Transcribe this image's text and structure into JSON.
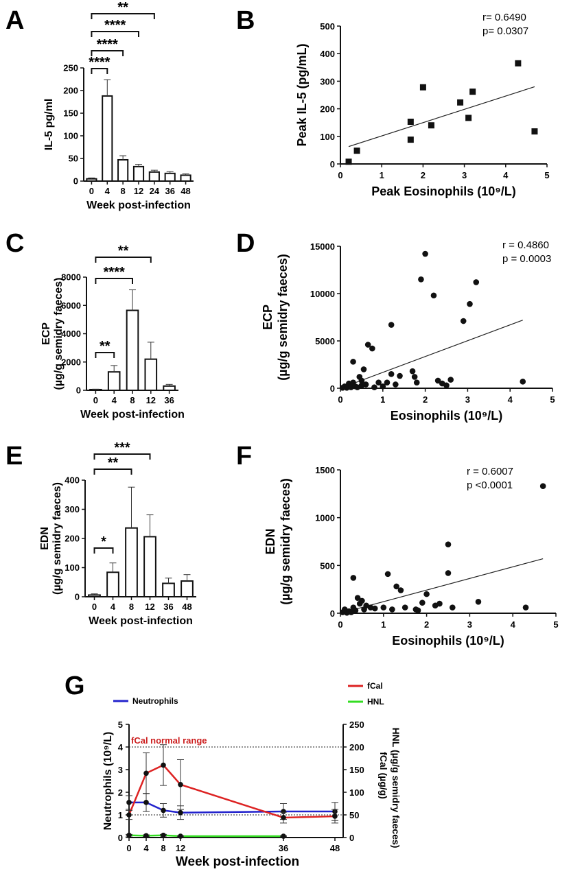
{
  "panels": {
    "A": "A",
    "B": "B",
    "C": "C",
    "D": "D",
    "E": "E",
    "F": "F",
    "G": "G"
  },
  "chart_data": [
    {
      "id": "A",
      "type": "bar",
      "ylabel": "IL-5 pg/ml",
      "xlabel": "Week post-infection",
      "categories": [
        "0",
        "4",
        "8",
        "12",
        "24",
        "36",
        "48"
      ],
      "values": [
        5,
        188,
        47,
        32,
        20,
        17,
        13
      ],
      "errors": [
        2,
        36,
        9,
        5,
        4,
        4,
        3
      ],
      "ylim": [
        0,
        250
      ],
      "yticks": [
        0,
        50,
        100,
        150,
        200,
        250
      ],
      "brackets": [
        {
          "from": "0",
          "to": "4",
          "label": "****"
        },
        {
          "from": "0",
          "to": "8",
          "label": "****"
        },
        {
          "from": "0",
          "to": "12",
          "label": "****"
        },
        {
          "from": "0",
          "to": "24",
          "label": "**"
        }
      ]
    },
    {
      "id": "B",
      "type": "scatter",
      "marker": "square",
      "xlabel": "Peak Eosinophils (10⁹/L)",
      "ylabel": "Peak IL-5 (pg/mL)",
      "xlim": [
        0,
        5
      ],
      "ylim": [
        0,
        500
      ],
      "xticks": [
        0,
        1,
        2,
        3,
        4,
        5
      ],
      "yticks": [
        0,
        100,
        200,
        300,
        400,
        500
      ],
      "stats": [
        "r= 0.6490",
        "p= 0.0307"
      ],
      "fit": [
        [
          0.2,
          63
        ],
        [
          4.7,
          280
        ]
      ],
      "points": [
        [
          0.2,
          8
        ],
        [
          0.4,
          48
        ],
        [
          1.7,
          88
        ],
        [
          1.7,
          153
        ],
        [
          2.0,
          278
        ],
        [
          2.2,
          140
        ],
        [
          2.9,
          223
        ],
        [
          3.1,
          167
        ],
        [
          3.2,
          262
        ],
        [
          4.3,
          365
        ],
        [
          4.7,
          118
        ]
      ]
    },
    {
      "id": "C",
      "type": "bar",
      "ylabel": "ECP",
      "ylabel2": "(µg/g semidry faeces)",
      "xlabel": "Week post-infection",
      "categories": [
        "0",
        "4",
        "8",
        "12",
        "36"
      ],
      "values": [
        50,
        1300,
        5650,
        2200,
        300
      ],
      "errors": [
        30,
        450,
        1450,
        1200,
        120
      ],
      "ylim": [
        0,
        8000
      ],
      "yticks": [
        0,
        2000,
        4000,
        6000,
        8000
      ],
      "brackets": [
        {
          "from": "0",
          "to": "4",
          "label": "**"
        },
        {
          "from": "0",
          "to": "8",
          "label": "****"
        },
        {
          "from": "0",
          "to": "12",
          "label": "**"
        }
      ]
    },
    {
      "id": "D",
      "type": "scatter",
      "marker": "circle",
      "xlabel": "Eosinophils (10⁹/L)",
      "ylabel": "ECP",
      "ylabel2": "(µg/g semidry faeces)",
      "xlim": [
        0,
        5
      ],
      "ylim": [
        0,
        15000
      ],
      "xticks": [
        0,
        1,
        2,
        3,
        4,
        5
      ],
      "yticks": [
        0,
        5000,
        10000,
        15000
      ],
      "stats": [
        "r = 0.4860",
        "p = 0.0003"
      ],
      "fit": [
        [
          0.0,
          0
        ],
        [
          4.3,
          7200
        ]
      ],
      "points": [
        [
          0.05,
          50
        ],
        [
          0.1,
          200
        ],
        [
          0.15,
          50
        ],
        [
          0.2,
          500
        ],
        [
          0.25,
          100
        ],
        [
          0.3,
          600
        ],
        [
          0.3,
          2800
        ],
        [
          0.35,
          200
        ],
        [
          0.4,
          100
        ],
        [
          0.45,
          1200
        ],
        [
          0.5,
          300
        ],
        [
          0.5,
          800
        ],
        [
          0.55,
          2000
        ],
        [
          0.6,
          400
        ],
        [
          0.65,
          4600
        ],
        [
          0.75,
          4200
        ],
        [
          0.8,
          100
        ],
        [
          0.9,
          600
        ],
        [
          1.0,
          200
        ],
        [
          1.1,
          600
        ],
        [
          1.2,
          1500
        ],
        [
          1.2,
          6700
        ],
        [
          1.3,
          400
        ],
        [
          1.4,
          1300
        ],
        [
          1.7,
          1800
        ],
        [
          1.75,
          1200
        ],
        [
          1.8,
          600
        ],
        [
          1.9,
          11500
        ],
        [
          2.0,
          14200
        ],
        [
          2.2,
          9800
        ],
        [
          2.3,
          800
        ],
        [
          2.4,
          500
        ],
        [
          2.5,
          300
        ],
        [
          2.6,
          900
        ],
        [
          2.9,
          7100
        ],
        [
          3.05,
          8900
        ],
        [
          3.2,
          11200
        ],
        [
          4.3,
          700
        ]
      ]
    },
    {
      "id": "E",
      "type": "bar",
      "ylabel": "EDN",
      "ylabel2": "(µg/g semidry faeces)",
      "xlabel": "Week post-infection",
      "categories": [
        "0",
        "4",
        "8",
        "12",
        "36",
        "48"
      ],
      "values": [
        6,
        84,
        236,
        206,
        46,
        54
      ],
      "errors": [
        4,
        32,
        140,
        75,
        18,
        22
      ],
      "ylim": [
        0,
        400
      ],
      "yticks": [
        0,
        100,
        200,
        300,
        400
      ],
      "brackets": [
        {
          "from": "0",
          "to": "4",
          "label": "*"
        },
        {
          "from": "0",
          "to": "8",
          "label": "**"
        },
        {
          "from": "0",
          "to": "12",
          "label": "***"
        }
      ]
    },
    {
      "id": "F",
      "type": "scatter",
      "marker": "circle",
      "xlabel": "Eosinophils (10⁹/L)",
      "ylabel": "EDN",
      "ylabel2": "(µg/g semidry faeces)",
      "xlim": [
        0,
        5
      ],
      "ylim": [
        0,
        1500
      ],
      "xticks": [
        0,
        1,
        2,
        3,
        4,
        5
      ],
      "yticks": [
        0,
        500,
        1000,
        1500
      ],
      "stats": [
        "r = 0.6007",
        "p  <0.0001"
      ],
      "fit": [
        [
          0.0,
          0
        ],
        [
          4.7,
          570
        ]
      ],
      "points": [
        [
          0.05,
          10
        ],
        [
          0.1,
          40
        ],
        [
          0.15,
          5
        ],
        [
          0.2,
          20
        ],
        [
          0.25,
          10
        ],
        [
          0.3,
          370
        ],
        [
          0.3,
          60
        ],
        [
          0.35,
          30
        ],
        [
          0.4,
          160
        ],
        [
          0.45,
          100
        ],
        [
          0.5,
          130
        ],
        [
          0.55,
          40
        ],
        [
          0.6,
          80
        ],
        [
          0.7,
          60
        ],
        [
          0.8,
          50
        ],
        [
          1.0,
          60
        ],
        [
          1.1,
          410
        ],
        [
          1.2,
          40
        ],
        [
          1.3,
          280
        ],
        [
          1.4,
          240
        ],
        [
          1.5,
          60
        ],
        [
          1.75,
          40
        ],
        [
          1.8,
          30
        ],
        [
          1.9,
          110
        ],
        [
          2.0,
          200
        ],
        [
          2.2,
          80
        ],
        [
          2.3,
          100
        ],
        [
          2.5,
          720
        ],
        [
          2.5,
          420
        ],
        [
          2.6,
          60
        ],
        [
          3.2,
          120
        ],
        [
          4.3,
          60
        ],
        [
          4.7,
          1330
        ]
      ]
    },
    {
      "id": "G",
      "type": "line",
      "xlabel": "Week post-infection",
      "ylabel_left": "Neutrophils (10⁹/L)",
      "ylabel_right": "HNL (µg/g semidry faeces)",
      "ylabel_right2": "fCal (µg/g)",
      "x": [
        0,
        4,
        8,
        12,
        36,
        48
      ],
      "xticks": [
        0,
        4,
        8,
        12,
        36,
        48
      ],
      "ylim_left": [
        0,
        5
      ],
      "ylim_right": [
        0,
        250
      ],
      "yticks_left": [
        0,
        1,
        2,
        3,
        4,
        5
      ],
      "yticks_right": [
        0,
        50,
        100,
        150,
        200,
        250
      ],
      "reference_line": {
        "value": 200,
        "label": "fCal normal range",
        "color": "#cc1f1f"
      },
      "reference_line2": {
        "value": 50
      },
      "series": [
        {
          "name": "Neutrophils",
          "color": "#2222cc",
          "axis": "left",
          "values": [
            1.55,
            1.55,
            1.2,
            1.1,
            1.15,
            1.15
          ],
          "errors": [
            0.3,
            0.4,
            0.3,
            0.3,
            0.35,
            0.4
          ]
        },
        {
          "name": "fCal",
          "color": "#dd2222",
          "axis": "right",
          "values": [
            50,
            142,
            160,
            117,
            44,
            47
          ],
          "errors": [
            10,
            45,
            45,
            55,
            12,
            15
          ]
        },
        {
          "name": "HNL",
          "color": "#33dd22",
          "axis": "right",
          "values": [
            5,
            4,
            5,
            3,
            3,
            null
          ],
          "errors": [
            2,
            2,
            2,
            1,
            1,
            null
          ]
        }
      ]
    }
  ]
}
